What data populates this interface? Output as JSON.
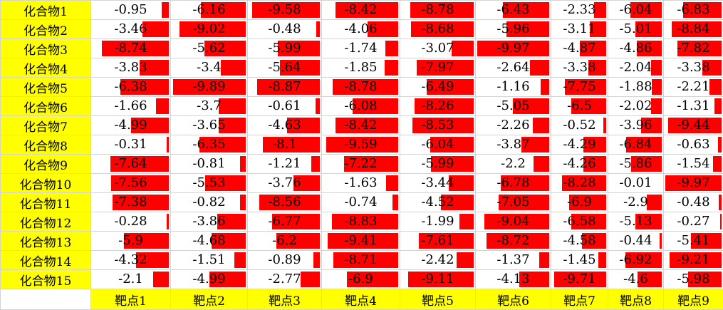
{
  "sheet": {
    "compounds": [
      "化合物1",
      "化合物2",
      "化合物3",
      "化合物4",
      "化合物5",
      "化合物6",
      "化合物7",
      "化合物8",
      "化合物9",
      "化合物10",
      "化合物11",
      "化合物12",
      "化合物13",
      "化合物14",
      "化合物15"
    ],
    "targets": [
      "靶点1",
      "靶点2",
      "靶点3",
      "靶点4",
      "靶点5",
      "靶点6",
      "靶点7",
      "靶点8",
      "靶点9"
    ],
    "values": [
      [
        "-0.95",
        "-6.16",
        "-9.58",
        "-8.42",
        "-8.78",
        "-6.43",
        "-2.33",
        "-6.04",
        "-6.83"
      ],
      [
        "-3.46",
        "-9.02",
        "-0.48",
        "-4.06",
        "-8.68",
        "-5.96",
        "-3.11",
        "-5.01",
        "-8.84"
      ],
      [
        "-8.74",
        "-5.62",
        "-5.99",
        "-1.74",
        "-3.07",
        "-9.97",
        "-4.87",
        "-4.86",
        "-7.82"
      ],
      [
        "-3.83",
        "-3.4",
        "-5.64",
        "-1.85",
        "-7.97",
        "-2.64",
        "-3.38",
        "-2.04",
        "-3.38"
      ],
      [
        "-6.38",
        "-9.89",
        "-8.87",
        "-8.78",
        "-6.49",
        "-1.16",
        "-7.75",
        "-1.88",
        "-2.21"
      ],
      [
        "-1.66",
        "-3.7",
        "-0.61",
        "-6.08",
        "-8.26",
        "-5.05",
        "-6.5",
        "-2.02",
        "-1.31"
      ],
      [
        "-4.99",
        "-3.65",
        "-4.63",
        "-8.42",
        "-8.53",
        "-2.26",
        "-0.52",
        "-3.96",
        "-9.44"
      ],
      [
        "-0.31",
        "-6.35",
        "-8.1",
        "-9.59",
        "-6.04",
        "-3.87",
        "-4.29",
        "-6.84",
        "-0.63"
      ],
      [
        "-7.64",
        "-0.81",
        "-1.21",
        "-7.22",
        "-5.99",
        "-2.2",
        "-4.26",
        "-5.86",
        "-1.54"
      ],
      [
        "-7.56",
        "-5.53",
        "-3.76",
        "-1.63",
        "-3.44",
        "-6.78",
        "-8.28",
        "-0.01",
        "-9.97"
      ],
      [
        "-7.38",
        "-0.82",
        "-8.56",
        "-0.74",
        "-4.52",
        "-7.05",
        "-6.9",
        "-2.9",
        "-0.48"
      ],
      [
        "-0.28",
        "-3.86",
        "-6.77",
        "-8.83",
        "-1.99",
        "-9.04",
        "-6.58",
        "-5.13",
        "-0.27"
      ],
      [
        "-5.9",
        "-4.68",
        "-6.2",
        "-9.41",
        "-7.61",
        "-8.72",
        "-4.58",
        "-0.44",
        "-5.41"
      ],
      [
        "-4.32",
        "-1.51",
        "-0.89",
        "-8.71",
        "-2.42",
        "-1.37",
        "-1.45",
        "-6.92",
        "-9.21"
      ],
      [
        "-2.1",
        "-4.99",
        "-2.77",
        "-6.9",
        "-9.11",
        "-4.13",
        "-9.71",
        "-4.6",
        "-5.98"
      ]
    ],
    "scale_max": 10,
    "colors": {
      "header_fill": "#ffff00",
      "bar_fill": "#ff0000",
      "grid": "#d4d4d4"
    }
  }
}
